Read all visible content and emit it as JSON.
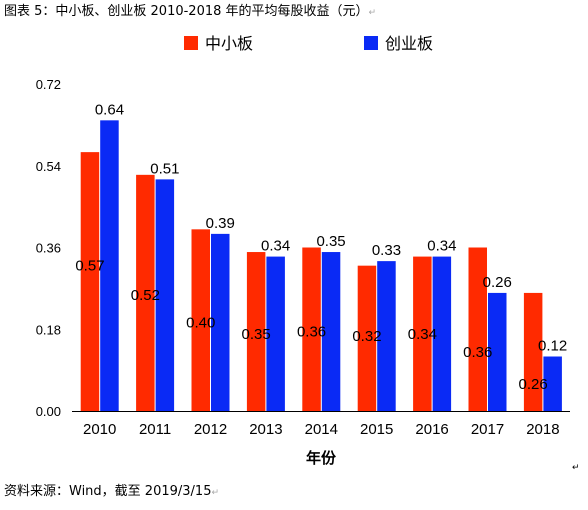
{
  "figure": {
    "title": "图表 5：中小板、创业板 2010-2018 年的平均每股收益（元）",
    "source": "资料来源：Wind，截至 2019/3/15",
    "paragraph_mark": "↵"
  },
  "chart_data": {
    "type": "bar",
    "title": "",
    "xlabel": "年份",
    "ylabel": "",
    "categories": [
      "2010",
      "2011",
      "2012",
      "2013",
      "2014",
      "2015",
      "2016",
      "2017",
      "2018"
    ],
    "series": [
      {
        "name": "中小板",
        "color": "#ff2a00",
        "values": [
          0.57,
          0.52,
          0.4,
          0.35,
          0.36,
          0.32,
          0.34,
          0.36,
          0.26
        ],
        "labels": [
          "0.57",
          "0.52",
          "0.40",
          "0.35",
          "0.36",
          "0.32",
          "0.34",
          "0.36",
          "0.26"
        ]
      },
      {
        "name": "创业板",
        "color": "#0a2af5",
        "values": [
          0.64,
          0.51,
          0.39,
          0.34,
          0.35,
          0.33,
          0.34,
          0.26,
          0.12
        ],
        "labels": [
          "0.64",
          "0.51",
          "0.39",
          "0.34",
          "0.35",
          "0.33",
          "0.34",
          "0.26",
          "0.12"
        ]
      }
    ],
    "ylim": [
      0,
      0.72
    ],
    "yticks": [
      0.0,
      0.18,
      0.36,
      0.54,
      0.72
    ],
    "ytick_labels": [
      "0.00",
      "0.18",
      "0.36",
      "0.54",
      "0.72"
    ],
    "grid": false,
    "legend": "top-center"
  }
}
